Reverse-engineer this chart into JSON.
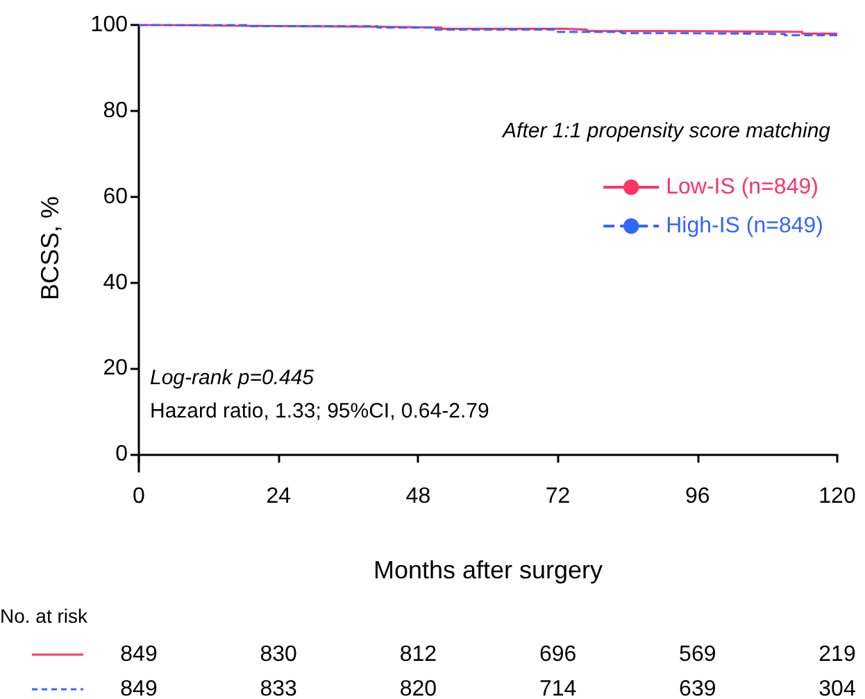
{
  "chart_data": {
    "type": "step",
    "xlabel": "Months after surgery",
    "ylabel": "BCSS, %",
    "legend_title": "After 1:1 propensity score matching",
    "legend": "right",
    "grid": false,
    "marker": "none",
    "xlim": [
      0,
      120
    ],
    "xticks": [
      0,
      24,
      48,
      72,
      96,
      120
    ],
    "ylim": [
      -4,
      100
    ],
    "yticks": [
      0,
      20,
      40,
      60,
      80,
      100
    ],
    "series": [
      {
        "name": "Low-IS (n=849)",
        "color": "#ff3366",
        "line_style": "solid",
        "x": [
          0,
          3,
          19,
          41,
          52,
          73,
          77,
          91,
          114,
          120
        ],
        "values": [
          100,
          99.8,
          99.6,
          99.4,
          99.1,
          98.9,
          98.6,
          98.4,
          98.0,
          98.0
        ]
      },
      {
        "name": "High-IS (n=849)",
        "color": "#3366ff",
        "line_style": "dashed",
        "x": [
          0,
          19,
          41,
          51,
          72,
          83,
          93,
          111,
          120
        ],
        "values": [
          100,
          99.7,
          99.4,
          98.9,
          98.4,
          98.1,
          97.9,
          97.6,
          97.6
        ]
      }
    ],
    "annotations": [
      "Log-rank p=0.445",
      "Hazard ratio, 1.33; 95%CI, 0.64-2.79",
      "No. at risk",
      "849",
      "830",
      "812",
      "696",
      "569",
      "219",
      "849",
      "833",
      "820",
      "714",
      "639",
      "304"
    ]
  }
}
